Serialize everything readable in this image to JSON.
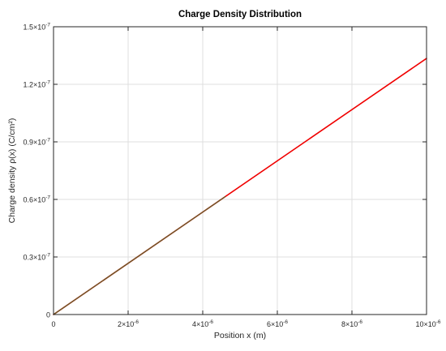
{
  "chart_data": {
    "type": "line",
    "title": "Charge Density Distribution",
    "xlabel": "Position x (m)",
    "ylabel": "Charge density ρ(x) (C/cm²)",
    "xlim": [
      0,
      1e-05
    ],
    "ylim": [
      0,
      1.5e-07
    ],
    "grid": true,
    "x_ticks": [
      {
        "value": 0,
        "label": "0"
      },
      {
        "value": 2e-06,
        "mant": "2",
        "exp": "-6"
      },
      {
        "value": 4e-06,
        "mant": "4",
        "exp": "-6"
      },
      {
        "value": 6e-06,
        "mant": "6",
        "exp": "-6"
      },
      {
        "value": 8e-06,
        "mant": "8",
        "exp": "-6"
      },
      {
        "value": 1e-05,
        "mant": "10",
        "exp": "-6"
      }
    ],
    "y_ticks": [
      {
        "value": 0,
        "label": "0"
      },
      {
        "value": 3e-08,
        "mant": "0.3",
        "exp": "-7"
      },
      {
        "value": 6e-08,
        "mant": "0.6",
        "exp": "-7"
      },
      {
        "value": 9e-08,
        "mant": "0.9",
        "exp": "-7"
      },
      {
        "value": 1.2e-07,
        "mant": "1.2",
        "exp": "-7"
      },
      {
        "value": 1.5e-07,
        "mant": "1.5",
        "exp": "-7"
      }
    ],
    "series": [
      {
        "color": "#f00000",
        "x": [
          0,
          1e-05
        ],
        "y": [
          0,
          1.335e-07
        ]
      },
      {
        "color": "#6b5a2a",
        "x": [
          0,
          4.6e-06
        ],
        "y": [
          0,
          6.14e-08
        ]
      }
    ]
  }
}
